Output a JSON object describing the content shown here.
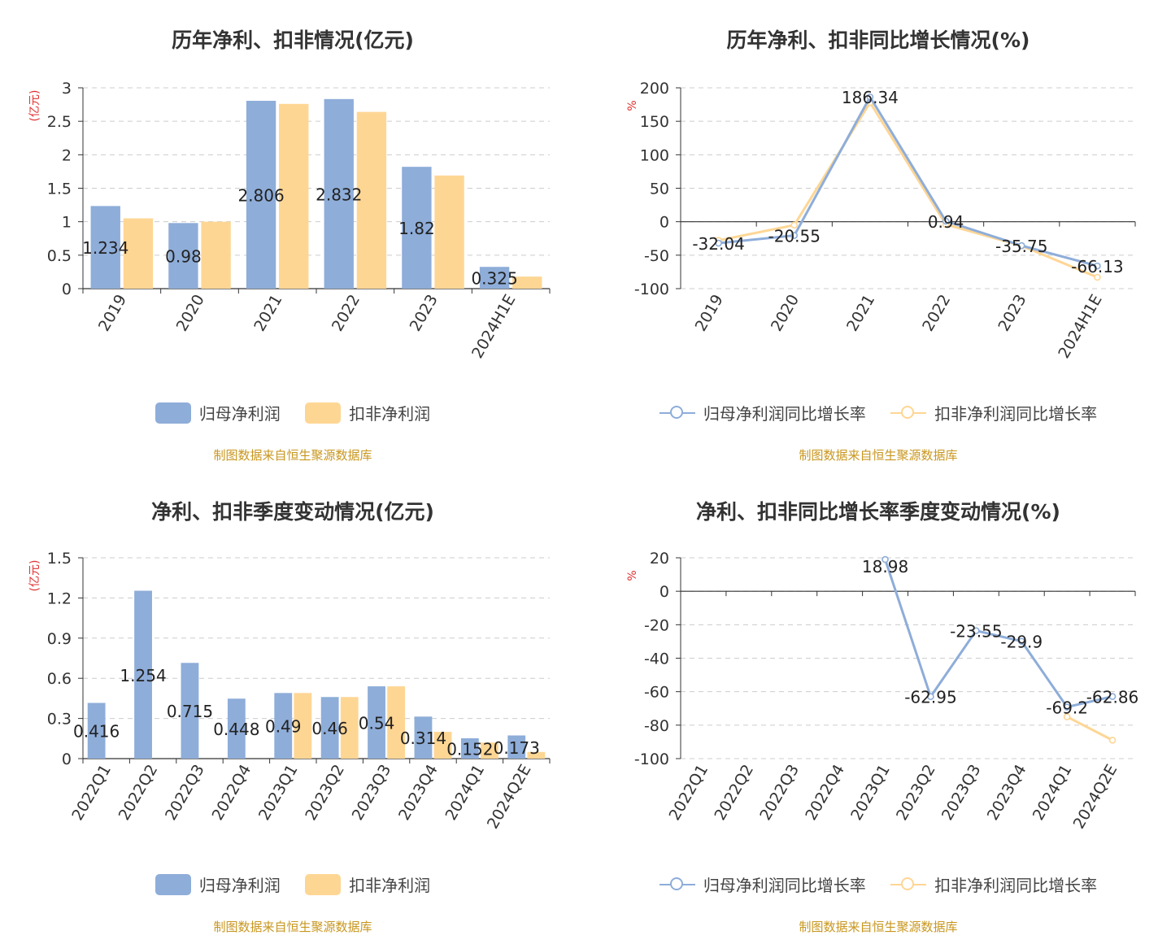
{
  "source_text": "制图数据来自恒生聚源数据库",
  "colors": {
    "blue": "#8eadd9",
    "orange": "#fed694",
    "axis": "#333333",
    "grid": "#cccccc",
    "unit": "#e03030",
    "source": "#c8961e"
  },
  "chart_data": [
    {
      "type": "bar",
      "title": "历年净利、扣非情况(亿元)",
      "ylabel": "(亿元)",
      "categories": [
        "2019",
        "2020",
        "2021",
        "2022",
        "2023",
        "2024H1E"
      ],
      "ylim": [
        0,
        3
      ],
      "yticks": [
        "0",
        "0.5",
        "1",
        "1.5",
        "2",
        "2.5",
        "3"
      ],
      "grid": true,
      "legend_position": "bottom",
      "series": [
        {
          "name": "归母净利润",
          "values": [
            1.234,
            0.98,
            2.806,
            2.832,
            1.82,
            0.325
          ],
          "labels": [
            "1.234",
            "0.98",
            "2.806",
            "2.832",
            "1.82",
            "0.325"
          ]
        },
        {
          "name": "扣非净利润",
          "values": [
            1.05,
            1.0,
            2.76,
            2.64,
            1.69,
            0.18
          ]
        }
      ]
    },
    {
      "type": "line",
      "title": "历年净利、扣非同比增长情况(%)",
      "ylabel": "%",
      "categories": [
        "2019",
        "2020",
        "2021",
        "2022",
        "2023",
        "2024H1E"
      ],
      "ylim": [
        -100,
        200
      ],
      "yticks": [
        "-100",
        "-50",
        "0",
        "50",
        "100",
        "150",
        "200"
      ],
      "grid": true,
      "legend_position": "bottom",
      "series": [
        {
          "name": "归母净利润同比增长率",
          "values": [
            -32.04,
            -20.55,
            186.34,
            0.94,
            -35.75,
            -66.13
          ],
          "labels": [
            "-32.04",
            "-20.55",
            "186.34",
            "0.94",
            "-35.75",
            "-66.13"
          ]
        },
        {
          "name": "扣非净利润同比增长率",
          "values": [
            -28,
            -5,
            178,
            -4,
            -36,
            -83
          ]
        }
      ]
    },
    {
      "type": "bar",
      "title": "净利、扣非季度变动情况(亿元)",
      "ylabel": "(亿元)",
      "categories": [
        "2022Q1",
        "2022Q2",
        "2022Q3",
        "2022Q4",
        "2023Q1",
        "2023Q2",
        "2023Q3",
        "2023Q4",
        "2024Q1",
        "2024Q2E"
      ],
      "ylim": [
        0,
        1.5
      ],
      "yticks": [
        "0",
        "0.3",
        "0.6",
        "0.9",
        "1.2",
        "1.5"
      ],
      "grid": true,
      "legend_position": "bottom",
      "series": [
        {
          "name": "归母净利润",
          "values": [
            0.416,
            1.254,
            0.715,
            0.448,
            0.49,
            0.46,
            0.54,
            0.314,
            0.152,
            0.173
          ],
          "labels": [
            "0.416",
            "1.254",
            "0.715",
            "0.448",
            "0.49",
            "0.46",
            "0.54",
            "0.314",
            "0.152",
            "0.173"
          ]
        },
        {
          "name": "扣非净利润",
          "values": [
            null,
            null,
            null,
            null,
            0.49,
            0.46,
            0.54,
            0.2,
            0.12,
            0.05
          ]
        }
      ]
    },
    {
      "type": "line",
      "title": "净利、扣非同比增长率季度变动情况(%)",
      "ylabel": "%",
      "categories": [
        "2022Q1",
        "2022Q2",
        "2022Q3",
        "2022Q4",
        "2023Q1",
        "2023Q2",
        "2023Q3",
        "2023Q4",
        "2024Q1",
        "2024Q2E"
      ],
      "ylim": [
        -100,
        20
      ],
      "yticks": [
        "-100",
        "-80",
        "-60",
        "-40",
        "-20",
        "0",
        "20"
      ],
      "grid": true,
      "legend_position": "bottom",
      "series": [
        {
          "name": "归母净利润同比增长率",
          "values": [
            null,
            null,
            null,
            null,
            18.98,
            -62.95,
            -23.55,
            -29.9,
            -69.2,
            -62.86
          ],
          "labels": [
            null,
            null,
            null,
            null,
            "18.98",
            "-62.95",
            "-23.55",
            "-29.9",
            "-69.2",
            "-62.86"
          ]
        },
        {
          "name": "扣非净利润同比增长率",
          "values": [
            null,
            null,
            null,
            null,
            null,
            null,
            null,
            null,
            -75,
            -89
          ]
        }
      ]
    }
  ]
}
